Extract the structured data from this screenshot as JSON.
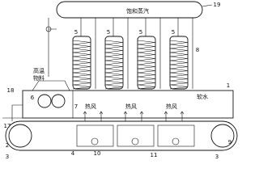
{
  "labels": [
    "19",
    "饱和蒸汽",
    "5",
    "5",
    "5",
    "5",
    "8",
    "18",
    "6",
    "高温",
    "物料",
    "7",
    "热风",
    "热风",
    "热风",
    "软水",
    "1",
    "17",
    "2",
    "3",
    "4",
    "10",
    "11",
    "9",
    "3"
  ]
}
